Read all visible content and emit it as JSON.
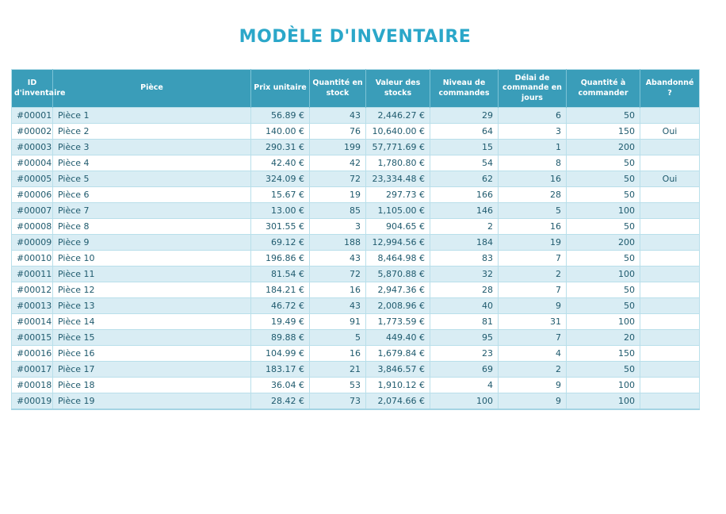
{
  "title": "MODÈLE D'INVENTAIRE",
  "colors": {
    "title_text": "#2ba7c9",
    "header_fill": "#3a9db9",
    "header_text": "#ffffff",
    "row_stripe_fill": "#d9edf4",
    "row_plain_fill": "#ffffff",
    "grid_border": "#b9dfea",
    "body_text": "#1f5a6d"
  },
  "table": {
    "columns": [
      {
        "key": "inventory-id",
        "label": "ID d'inventaire",
        "align": "left"
      },
      {
        "key": "piece",
        "label": "Pièce",
        "align": "left"
      },
      {
        "key": "unit-price",
        "label": "Prix unitaire",
        "align": "right"
      },
      {
        "key": "quantity-in-stock",
        "label": "Quantité en stock",
        "align": "right"
      },
      {
        "key": "stock-value",
        "label": "Valeur des stocks",
        "align": "right"
      },
      {
        "key": "reorder-level",
        "label": "Niveau de commandes",
        "align": "right"
      },
      {
        "key": "lead-time-days",
        "label": "Délai de commande en jours",
        "align": "right"
      },
      {
        "key": "quantity-to-order",
        "label": "Quantité à commander",
        "align": "right"
      },
      {
        "key": "discontinued",
        "label": "Abandonné ?",
        "align": "center"
      }
    ],
    "rows": [
      [
        "#00001",
        "Pièce 1",
        "56.89 €",
        "43",
        "2,446.27 €",
        "29",
        "6",
        "50",
        ""
      ],
      [
        "#00002",
        "Pièce 2",
        "140.00 €",
        "76",
        "10,640.00 €",
        "64",
        "3",
        "150",
        "Oui"
      ],
      [
        "#00003",
        "Pièce 3",
        "290.31 €",
        "199",
        "57,771.69 €",
        "15",
        "1",
        "200",
        ""
      ],
      [
        "#00004",
        "Pièce 4",
        "42.40 €",
        "42",
        "1,780.80 €",
        "54",
        "8",
        "50",
        ""
      ],
      [
        "#00005",
        "Pièce 5",
        "324.09 €",
        "72",
        "23,334.48 €",
        "62",
        "16",
        "50",
        "Oui"
      ],
      [
        "#00006",
        "Pièce 6",
        "15.67 €",
        "19",
        "297.73 €",
        "166",
        "28",
        "50",
        ""
      ],
      [
        "#00007",
        "Pièce 7",
        "13.00 €",
        "85",
        "1,105.00 €",
        "146",
        "5",
        "100",
        ""
      ],
      [
        "#00008",
        "Pièce 8",
        "301.55 €",
        "3",
        "904.65 €",
        "2",
        "16",
        "50",
        ""
      ],
      [
        "#00009",
        "Pièce 9",
        "69.12 €",
        "188",
        "12,994.56 €",
        "184",
        "19",
        "200",
        ""
      ],
      [
        "#00010",
        "Pièce 10",
        "196.86 €",
        "43",
        "8,464.98 €",
        "83",
        "7",
        "50",
        ""
      ],
      [
        "#00011",
        "Pièce 11",
        "81.54 €",
        "72",
        "5,870.88 €",
        "32",
        "2",
        "100",
        ""
      ],
      [
        "#00012",
        "Pièce 12",
        "184.21 €",
        "16",
        "2,947.36 €",
        "28",
        "7",
        "50",
        ""
      ],
      [
        "#00013",
        "Pièce 13",
        "46.72 €",
        "43",
        "2,008.96 €",
        "40",
        "9",
        "50",
        ""
      ],
      [
        "#00014",
        "Pièce 14",
        "19.49 €",
        "91",
        "1,773.59 €",
        "81",
        "31",
        "100",
        ""
      ],
      [
        "#00015",
        "Pièce 15",
        "89.88 €",
        "5",
        "449.40 €",
        "95",
        "7",
        "20",
        ""
      ],
      [
        "#00016",
        "Pièce 16",
        "104.99 €",
        "16",
        "1,679.84 €",
        "23",
        "4",
        "150",
        ""
      ],
      [
        "#00017",
        "Pièce 17",
        "183.17 €",
        "21",
        "3,846.57 €",
        "69",
        "2",
        "50",
        ""
      ],
      [
        "#00018",
        "Pièce 18",
        "36.04 €",
        "53",
        "1,910.12 €",
        "4",
        "9",
        "100",
        ""
      ],
      [
        "#00019",
        "Pièce 19",
        "28.42 €",
        "73",
        "2,074.66 €",
        "100",
        "9",
        "100",
        ""
      ]
    ]
  }
}
